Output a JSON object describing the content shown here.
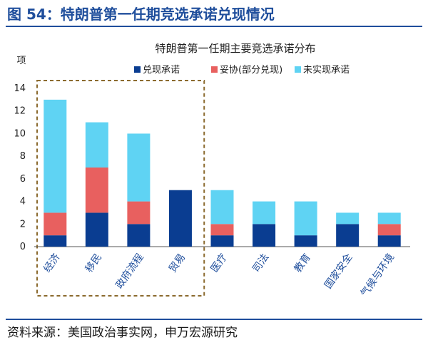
{
  "figure_title": "图 54：特朗普第一任期竞选承诺兑现情况",
  "source": "资料来源：美国政治事实网，申万宏源研究",
  "chart_data": {
    "type": "bar",
    "stacked": true,
    "title": "特朗普第一任期主要竞选承诺分布",
    "ylabel": "项",
    "xlabel": "",
    "ylim": [
      0,
      14
    ],
    "yticks": [
      0,
      2,
      4,
      6,
      8,
      10,
      12,
      14
    ],
    "categories": [
      "经济",
      "移民",
      "政府流程",
      "贸易",
      "医疗",
      "司法",
      "教育",
      "国家安全",
      "气候与环境"
    ],
    "series": [
      {
        "name": "兑现承诺",
        "color": "#0a3d91",
        "values": [
          1,
          3,
          2,
          5,
          1,
          2,
          1,
          2,
          1
        ]
      },
      {
        "name": "妥协(部分兑现)",
        "color": "#e8605f",
        "values": [
          2,
          4,
          2,
          0,
          1,
          0,
          0,
          0,
          1
        ]
      },
      {
        "name": "未实现承诺",
        "color": "#5fd3f3",
        "values": [
          10,
          4,
          6,
          0,
          3,
          2,
          3,
          1,
          1
        ]
      }
    ],
    "legend_position": "top-right",
    "grid": false,
    "highlight_box": {
      "from_category": "经济",
      "to_category": "贸易",
      "style": "dashed",
      "color": "#8b6a2e"
    }
  }
}
